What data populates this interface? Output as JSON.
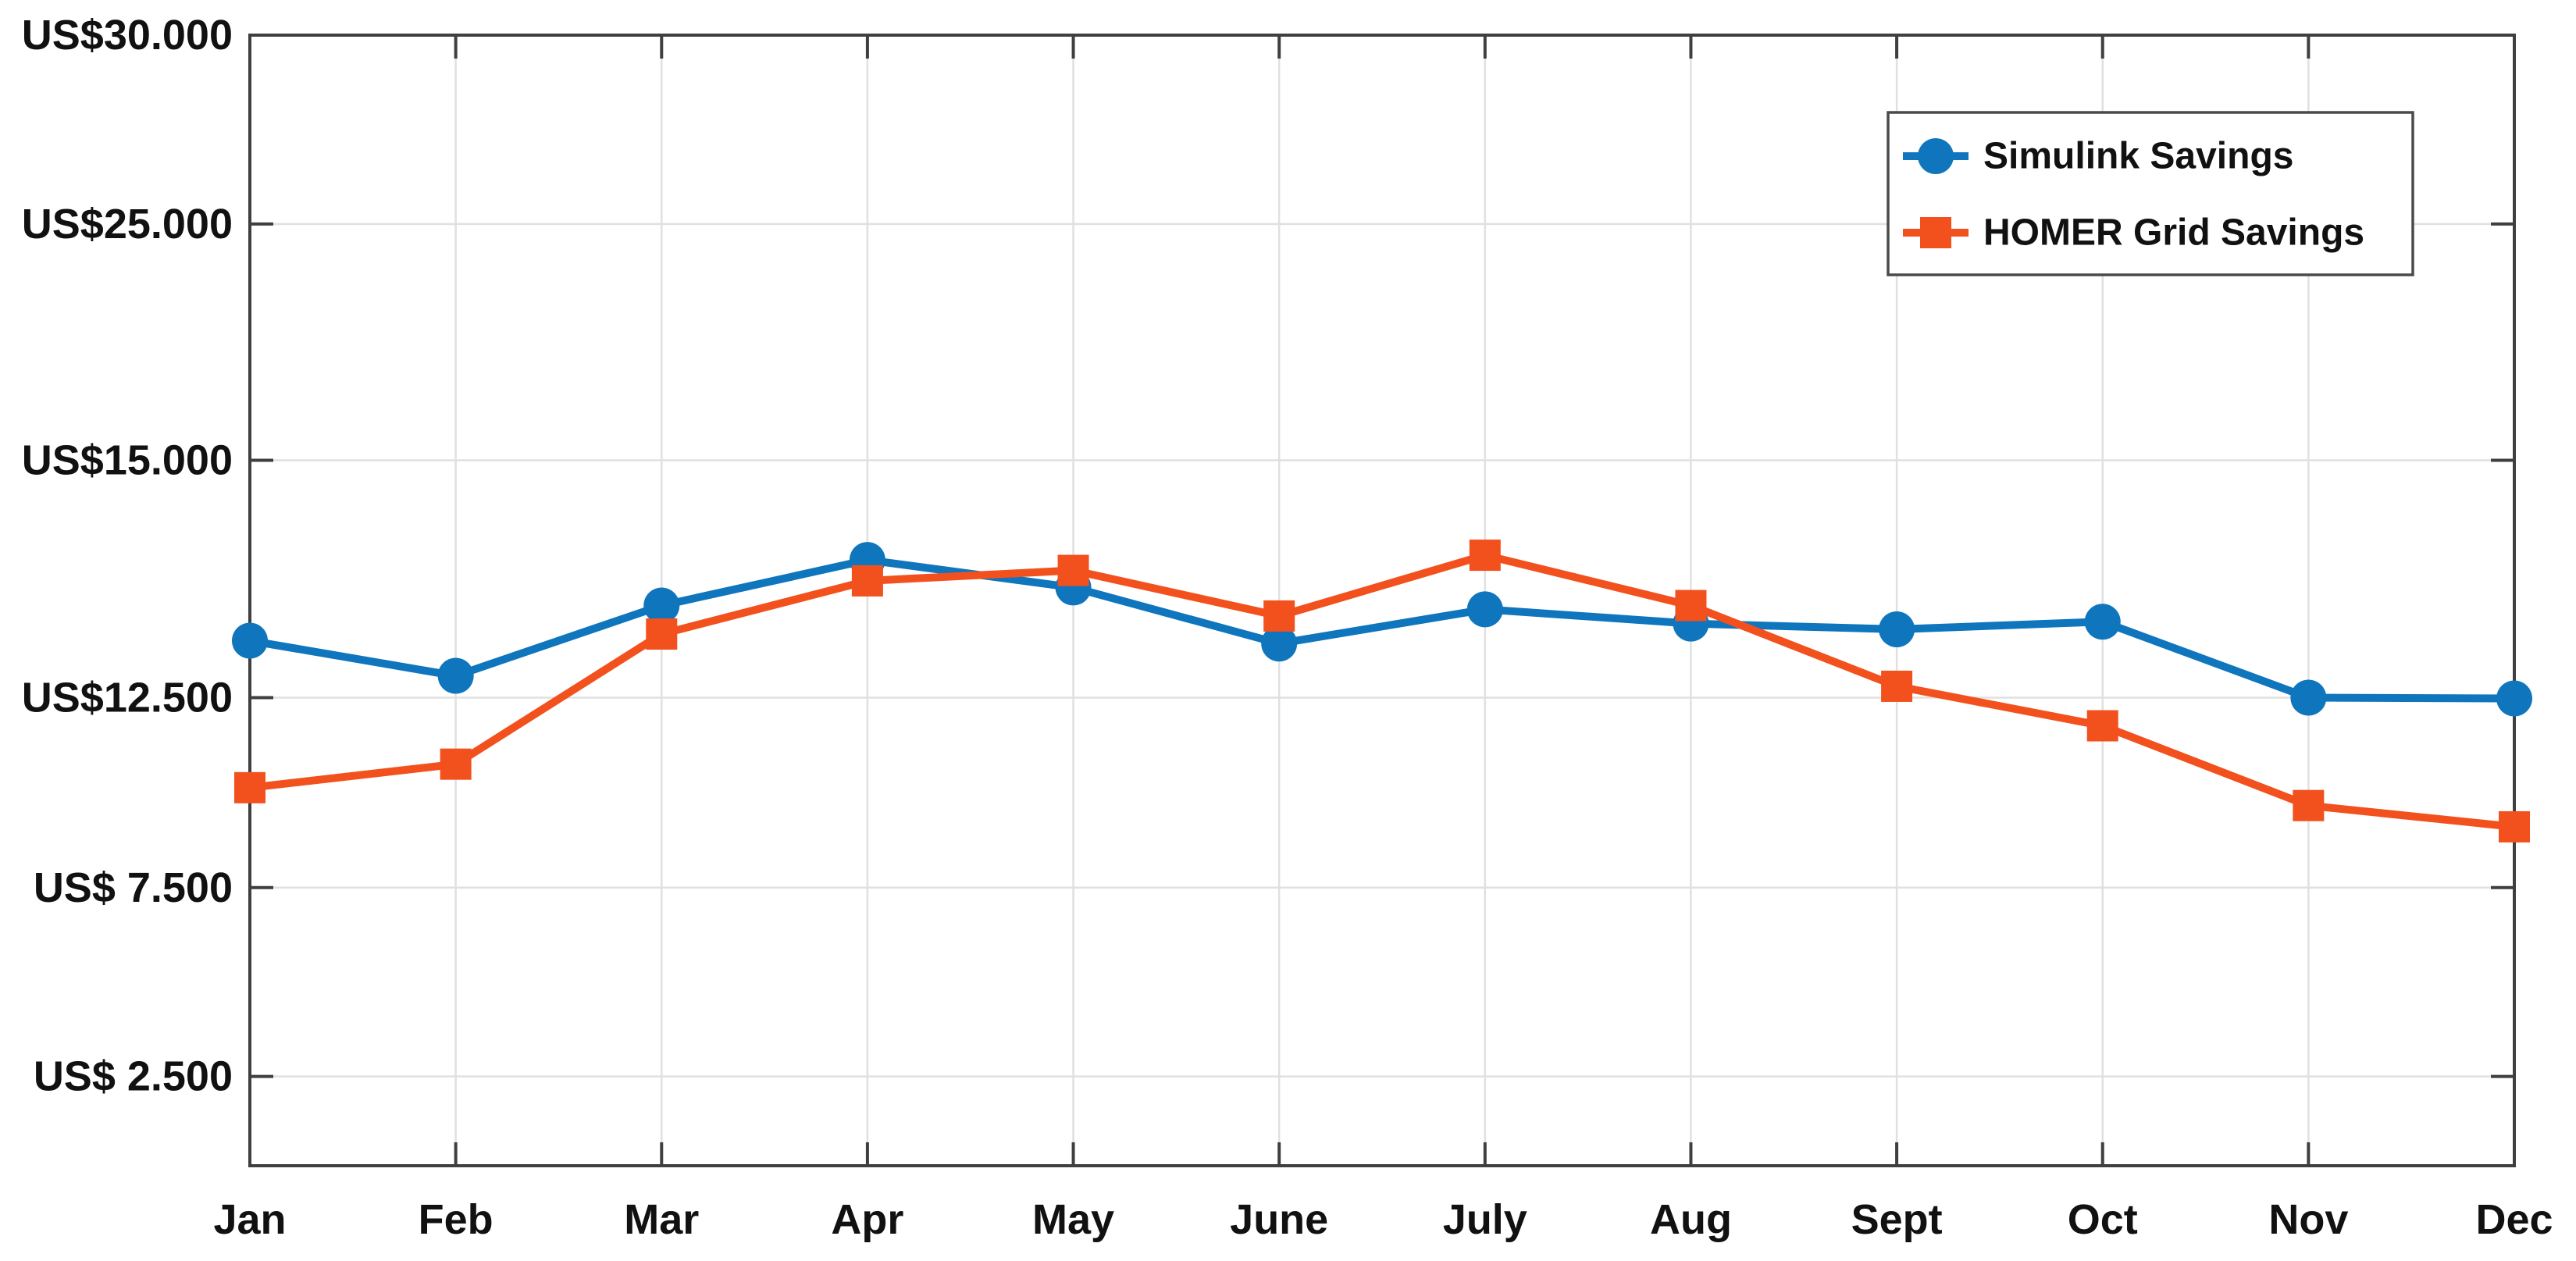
{
  "figure": {
    "background": "#ffffff",
    "frame_color": "#3f3f3f",
    "tick_color": "#3f3f3f",
    "grid_color": "#e0e0e0",
    "text_color": "#111111",
    "legend_border_color": "#4a4a4a"
  },
  "chart_data": {
    "type": "line",
    "title": "",
    "xlabel": "",
    "ylabel": "",
    "grid": true,
    "legend_position": "top-right",
    "categories": [
      "Jan",
      "Feb",
      "Mar",
      "Apr",
      "May",
      "June",
      "July",
      "Aug",
      "Sept",
      "Oct",
      "Nov",
      "Dec"
    ],
    "series": [
      {
        "name": "Simulink Savings",
        "color": "#0f75bd",
        "marker": "circle",
        "values": [
          13100,
          12730,
          13470,
          13950,
          13660,
          13070,
          13430,
          13280,
          13220,
          13300,
          12500,
          12480
        ]
      },
      {
        "name": "HOMER Grid Savings",
        "color": "#f2511e",
        "marker": "square",
        "values": [
          10130,
          10750,
          13170,
          13730,
          13840,
          13360,
          14000,
          13470,
          12620,
          11760,
          9660,
          9100
        ]
      }
    ],
    "y_axis": {
      "unit": "US$",
      "ticks": [
        {
          "value": 30000,
          "label": "US$30.000",
          "pos": 0.0
        },
        {
          "value": 25000,
          "label": "US$25.000",
          "pos": 0.167
        },
        {
          "value": 15000,
          "label": "US$15.000",
          "pos": 0.376
        },
        {
          "value": 12500,
          "label": "US$12.500",
          "pos": 0.586
        },
        {
          "value": 7500,
          "label": "US$ 7.500",
          "pos": 0.754
        },
        {
          "value": 2500,
          "label": "US$ 2.500",
          "pos": 0.921
        }
      ],
      "note": "tick spacing reproduced from source figure (non-uniform)"
    },
    "legend": {
      "entries": [
        "Simulink Savings",
        "HOMER Grid Savings"
      ]
    }
  }
}
